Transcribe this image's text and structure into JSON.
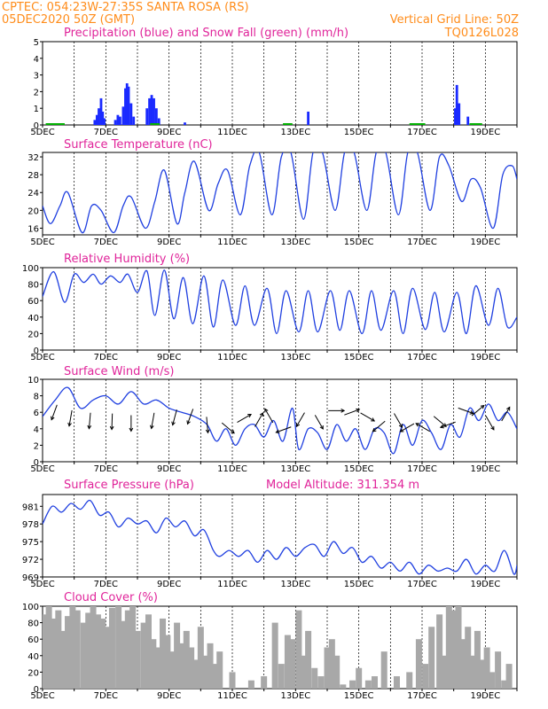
{
  "header": {
    "line1_left": "CPTEC:   054:23W-27:35S   SANTA ROSA (RS)",
    "line2_left": "05DEC2020 50Z (GMT)",
    "line2_right": "Vertical Grid Line: 50Z",
    "line3_right": "TQ0126L028"
  },
  "colors": {
    "header": "#ff8c1a",
    "title": "#e0249a",
    "line": "#2040e0",
    "precip": "#1a2aff",
    "snow": "#00b000",
    "cloud": "#a8a8a8"
  },
  "x_labels": [
    "5DEC",
    "7DEC",
    "9DEC",
    "11DEC",
    "13DEC",
    "15DEC",
    "17DEC",
    "19DEC"
  ],
  "chart_data": [
    {
      "id": "precip",
      "type": "bar",
      "title": "Precipitation (blue) and Snow Fall (green) (mm/h)",
      "ylim": [
        0,
        5
      ],
      "yticks": [
        "0",
        "1",
        "2",
        "3",
        "4",
        "5"
      ],
      "xlim": [
        5,
        20
      ],
      "series": [
        {
          "name": "Precipitation",
          "points": [
            [
              6.65,
              0.3
            ],
            [
              6.72,
              0.6
            ],
            [
              6.78,
              1.0
            ],
            [
              6.85,
              1.6
            ],
            [
              6.9,
              0.8
            ],
            [
              6.95,
              0.4
            ],
            [
              7.3,
              0.3
            ],
            [
              7.38,
              0.6
            ],
            [
              7.45,
              0.5
            ],
            [
              7.55,
              1.1
            ],
            [
              7.62,
              2.2
            ],
            [
              7.67,
              2.5
            ],
            [
              7.72,
              2.3
            ],
            [
              7.8,
              1.3
            ],
            [
              7.88,
              0.5
            ],
            [
              8.3,
              1.0
            ],
            [
              8.38,
              1.6
            ],
            [
              8.45,
              1.8
            ],
            [
              8.52,
              1.6
            ],
            [
              8.6,
              1.0
            ],
            [
              8.68,
              0.4
            ],
            [
              9.5,
              0.15
            ],
            [
              13.4,
              0.8
            ],
            [
              18.05,
              1.0
            ],
            [
              18.1,
              2.4
            ],
            [
              18.17,
              1.3
            ],
            [
              18.45,
              0.5
            ]
          ]
        },
        {
          "name": "Snow Fall",
          "points": []
        }
      ]
    },
    {
      "id": "temp",
      "type": "line",
      "title": "Surface Temperature (nC)",
      "ylim": [
        14.5,
        33
      ],
      "yticks": [
        "16",
        "20",
        "24",
        "28",
        "32"
      ],
      "xlim": [
        5,
        20
      ],
      "x": [
        5,
        5.25,
        5.55,
        5.8,
        6.25,
        6.55,
        6.85,
        7.25,
        7.55,
        7.8,
        8.25,
        8.55,
        8.85,
        9.25,
        9.5,
        9.8,
        10.25,
        10.55,
        10.85,
        11.25,
        11.55,
        11.85,
        12.25,
        12.55,
        12.85,
        13.25,
        13.55,
        13.85,
        14.25,
        14.55,
        14.85,
        15.25,
        15.55,
        15.85,
        16.25,
        16.55,
        16.85,
        17.25,
        17.55,
        17.85,
        18.25,
        18.55,
        18.85,
        19.25,
        19.55,
        19.85,
        20
      ],
      "values": [
        21,
        17,
        21,
        24,
        15,
        21,
        20,
        15,
        21,
        23,
        16,
        22,
        29,
        17,
        24,
        31,
        20,
        26,
        29,
        19,
        30,
        33,
        19,
        32,
        33,
        18,
        33,
        33,
        20,
        33,
        33,
        20,
        33,
        33,
        19,
        33,
        33,
        20,
        32,
        30,
        22,
        27,
        25,
        16,
        28,
        30,
        27
      ]
    },
    {
      "id": "rh",
      "type": "line",
      "title": "Relative Humidity (%)",
      "ylim": [
        0,
        100
      ],
      "yticks": [
        "0",
        "20",
        "40",
        "60",
        "80",
        "100"
      ],
      "xlim": [
        5,
        20
      ],
      "x": [
        5,
        5.35,
        5.7,
        6.0,
        6.3,
        6.6,
        6.85,
        7.15,
        7.45,
        7.7,
        8.0,
        8.3,
        8.55,
        8.85,
        9.15,
        9.45,
        9.75,
        10.1,
        10.4,
        10.7,
        11.1,
        11.4,
        11.7,
        12.1,
        12.4,
        12.7,
        13.1,
        13.4,
        13.7,
        14.1,
        14.4,
        14.7,
        15.1,
        15.4,
        15.7,
        16.1,
        16.4,
        16.7,
        17.1,
        17.4,
        17.7,
        18.1,
        18.4,
        18.7,
        19.1,
        19.4,
        19.7,
        20
      ],
      "values": [
        65,
        95,
        58,
        92,
        82,
        92,
        80,
        90,
        82,
        92,
        70,
        96,
        42,
        97,
        38,
        88,
        32,
        90,
        28,
        85,
        30,
        78,
        30,
        75,
        20,
        72,
        22,
        72,
        22,
        72,
        24,
        72,
        20,
        72,
        24,
        72,
        20,
        75,
        25,
        70,
        22,
        70,
        20,
        78,
        30,
        75,
        28,
        40
      ]
    },
    {
      "id": "wind",
      "type": "line",
      "title": "Surface Wind (m/s)",
      "ylim": [
        0,
        10
      ],
      "yticks": [
        "0",
        "2",
        "4",
        "6",
        "8",
        "10"
      ],
      "xlim": [
        5,
        20
      ],
      "x": [
        5,
        5.4,
        5.8,
        6.2,
        6.6,
        7.0,
        7.4,
        7.8,
        8.2,
        8.6,
        9.0,
        9.4,
        9.8,
        10.2,
        10.5,
        10.8,
        11.1,
        11.4,
        11.7,
        12.0,
        12.3,
        12.6,
        12.9,
        13.1,
        13.4,
        13.7,
        14.0,
        14.3,
        14.6,
        14.9,
        15.2,
        15.5,
        15.8,
        16.1,
        16.4,
        16.7,
        17.0,
        17.3,
        17.6,
        17.9,
        18.2,
        18.5,
        18.8,
        19.1,
        19.4,
        19.7,
        20
      ],
      "values": [
        5.5,
        7.5,
        9.0,
        6.5,
        7.5,
        8.0,
        7.0,
        8.5,
        7.0,
        7.5,
        6.5,
        6.0,
        5.5,
        4.5,
        2.5,
        4.0,
        2.0,
        4.0,
        4.5,
        3.0,
        5.0,
        2.5,
        6.5,
        1.5,
        4.0,
        3.5,
        1.5,
        4.5,
        2.5,
        4.0,
        1.5,
        4.0,
        3.5,
        1.0,
        4.5,
        2.0,
        5.0,
        3.5,
        1.5,
        4.5,
        3.0,
        6.5,
        5.0,
        7.0,
        5.0,
        6.0,
        4.0
      ],
      "arrows": [
        [
          5.4,
          6.3,
          250
        ],
        [
          5.9,
          5.6,
          260
        ],
        [
          6.5,
          5.3,
          265
        ],
        [
          7.2,
          5.2,
          268
        ],
        [
          7.8,
          5.0,
          270
        ],
        [
          8.5,
          5.3,
          260
        ],
        [
          9.2,
          5.7,
          255
        ],
        [
          9.7,
          5.8,
          250
        ],
        [
          10.2,
          4.8,
          275
        ],
        [
          10.8,
          4.3,
          320
        ],
        [
          11.3,
          5.1,
          30
        ],
        [
          11.8,
          4.8,
          60
        ],
        [
          12.2,
          5.3,
          120
        ],
        [
          12.7,
          4.0,
          200
        ],
        [
          13.2,
          5.4,
          240
        ],
        [
          13.7,
          5.1,
          300
        ],
        [
          14.2,
          6.2,
          0
        ],
        [
          14.7,
          5.9,
          20
        ],
        [
          15.2,
          5.6,
          330
        ],
        [
          15.7,
          4.5,
          220
        ],
        [
          16.2,
          5.3,
          300
        ],
        [
          16.6,
          4.3,
          210
        ],
        [
          17.1,
          4.0,
          150
        ],
        [
          17.5,
          5.1,
          320
        ],
        [
          17.9,
          4.6,
          200
        ],
        [
          18.3,
          6.3,
          340
        ],
        [
          18.7,
          6.0,
          40
        ],
        [
          19.1,
          5.0,
          300
        ],
        [
          19.6,
          5.5,
          60
        ]
      ]
    },
    {
      "id": "pres",
      "type": "line",
      "title": "Surface Pressure (hPa)",
      "annotation": "Model Altitude: 311.354 m",
      "ylim": [
        969,
        983
      ],
      "yticks": [
        "969",
        "972",
        "975",
        "978",
        "981"
      ],
      "xlim": [
        5,
        20
      ],
      "x": [
        5,
        5.3,
        5.6,
        5.9,
        6.2,
        6.5,
        6.8,
        7.1,
        7.4,
        7.7,
        8.0,
        8.3,
        8.6,
        8.9,
        9.2,
        9.5,
        9.8,
        10.1,
        10.4,
        10.6,
        10.9,
        11.2,
        11.5,
        11.8,
        12.1,
        12.4,
        12.7,
        13.0,
        13.3,
        13.6,
        13.9,
        14.2,
        14.5,
        14.8,
        15.1,
        15.4,
        15.7,
        16.0,
        16.3,
        16.6,
        16.9,
        17.2,
        17.5,
        17.8,
        18.1,
        18.4,
        18.7,
        19.0,
        19.3,
        19.6,
        19.9,
        20
      ],
      "values": [
        978,
        981,
        980,
        981.5,
        980.5,
        982,
        979.5,
        980,
        977.5,
        979,
        978,
        978.5,
        976.5,
        979,
        977.5,
        978.5,
        976,
        977,
        973.5,
        972.5,
        973.5,
        972.5,
        973.5,
        971.5,
        973.5,
        972,
        974,
        972.5,
        974,
        974.5,
        972.5,
        975,
        973,
        974,
        971.5,
        972.5,
        970.5,
        971.5,
        970,
        971.5,
        969.5,
        971,
        970,
        970.5,
        970,
        972,
        969.5,
        971,
        970,
        973.5,
        969.5,
        971
      ]
    },
    {
      "id": "cloud",
      "type": "bar",
      "title": "Cloud Cover (%)",
      "ylim": [
        0,
        100
      ],
      "yticks": [
        "0",
        "20",
        "40",
        "60",
        "80",
        "100"
      ],
      "xlim": [
        5,
        20
      ],
      "x": [
        5.08,
        5.2,
        5.35,
        5.5,
        5.65,
        5.8,
        5.95,
        6.1,
        6.3,
        6.45,
        6.6,
        6.75,
        6.9,
        7.05,
        7.2,
        7.4,
        7.55,
        7.7,
        7.85,
        8.0,
        8.2,
        8.35,
        8.5,
        8.65,
        8.8,
        8.95,
        9.1,
        9.25,
        9.4,
        9.55,
        9.7,
        9.85,
        10.0,
        10.15,
        10.3,
        10.45,
        10.6,
        11.0,
        11.6,
        12.0,
        12.35,
        12.55,
        12.75,
        12.9,
        13.1,
        13.25,
        13.4,
        13.6,
        13.8,
        14.0,
        14.15,
        14.3,
        14.5,
        14.8,
        15.0,
        15.3,
        15.5,
        15.8,
        16.2,
        16.6,
        16.9,
        17.1,
        17.3,
        17.55,
        17.7,
        17.85,
        18.0,
        18.15,
        18.3,
        18.45,
        18.6,
        18.75,
        18.9,
        19.05,
        19.2,
        19.4,
        19.6,
        19.75
      ],
      "values": [
        90,
        100,
        85,
        95,
        70,
        88,
        100,
        95,
        80,
        92,
        100,
        90,
        85,
        75,
        98,
        100,
        82,
        95,
        100,
        70,
        80,
        90,
        60,
        50,
        85,
        65,
        45,
        80,
        55,
        70,
        50,
        35,
        75,
        40,
        55,
        30,
        45,
        20,
        10,
        15,
        80,
        30,
        65,
        60,
        95,
        40,
        70,
        25,
        15,
        50,
        60,
        40,
        5,
        10,
        25,
        10,
        15,
        45,
        15,
        20,
        60,
        30,
        75,
        90,
        40,
        100,
        95,
        100,
        60,
        75,
        40,
        70,
        35,
        50,
        20,
        45,
        10,
        30
      ]
    }
  ]
}
